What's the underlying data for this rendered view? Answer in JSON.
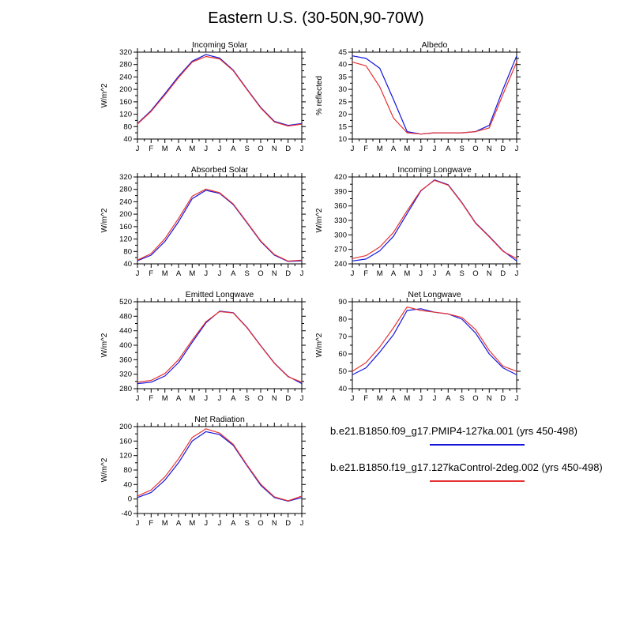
{
  "page_title": "Eastern U.S. (30-50N,90-70W)",
  "months": [
    "J",
    "F",
    "M",
    "A",
    "M",
    "J",
    "J",
    "A",
    "S",
    "O",
    "N",
    "D",
    "J"
  ],
  "series_colors": {
    "blue": "#1414dc",
    "red": "#e63232"
  },
  "legend": {
    "entries": [
      {
        "label": "b.e21.B1850.f09_g17.PMIP4-127ka.001 (yrs 450-498)",
        "color": "#1414dc"
      },
      {
        "label": "b.e21.B1850.f19_g17.127kaControl-2deg.002 (yrs 450-498)",
        "color": "#e63232"
      }
    ]
  },
  "chart_data": [
    {
      "type": "line",
      "title": "Incoming Solar",
      "ylabel": "W/m^2",
      "ylim": [
        40,
        320
      ],
      "ytick": 40,
      "categories": [
        "J",
        "F",
        "M",
        "A",
        "M",
        "J",
        "J",
        "A",
        "S",
        "O",
        "N",
        "D",
        "J"
      ],
      "series": [
        {
          "name": "PMIP4-127ka.001",
          "color": "blue",
          "values": [
            90,
            132,
            186,
            242,
            291,
            312,
            301,
            262,
            201,
            142,
            97,
            84,
            90
          ]
        },
        {
          "name": "127kaControl-2deg.002",
          "color": "red",
          "values": [
            88,
            129,
            182,
            238,
            288,
            306,
            298,
            260,
            199,
            140,
            95,
            82,
            88
          ]
        }
      ]
    },
    {
      "type": "line",
      "title": "Albedo",
      "ylabel": "% reflected",
      "ylim": [
        10,
        45
      ],
      "ytick": 5,
      "categories": [
        "J",
        "F",
        "M",
        "A",
        "M",
        "J",
        "J",
        "A",
        "S",
        "O",
        "N",
        "D",
        "J"
      ],
      "series": [
        {
          "name": "PMIP4-127ka.001",
          "color": "blue",
          "values": [
            43.5,
            42.5,
            38.5,
            26,
            13,
            12,
            12.5,
            12.5,
            12.5,
            13,
            15.5,
            30,
            43.5
          ]
        },
        {
          "name": "127kaControl-2deg.002",
          "color": "red",
          "values": [
            41,
            39.5,
            31,
            18.5,
            12.5,
            12,
            12.5,
            12.5,
            12.5,
            13,
            14.5,
            28,
            41
          ]
        }
      ]
    },
    {
      "type": "line",
      "title": "Absorbed Solar",
      "ylabel": "W/m^2",
      "ylim": [
        40,
        320
      ],
      "ytick": 40,
      "categories": [
        "J",
        "F",
        "M",
        "A",
        "M",
        "J",
        "J",
        "A",
        "S",
        "O",
        "N",
        "D",
        "J"
      ],
      "series": [
        {
          "name": "PMIP4-127ka.001",
          "color": "blue",
          "values": [
            50,
            68,
            112,
            176,
            250,
            277,
            267,
            231,
            172,
            112,
            68,
            48,
            50
          ]
        },
        {
          "name": "127kaControl-2deg.002",
          "color": "red",
          "values": [
            52,
            73,
            121,
            186,
            258,
            281,
            269,
            233,
            174,
            114,
            70,
            49,
            52
          ]
        }
      ]
    },
    {
      "type": "line",
      "title": "Incoming Longwave",
      "ylabel": "W/m^2",
      "ylim": [
        240,
        420
      ],
      "ytick": 30,
      "categories": [
        "J",
        "F",
        "M",
        "A",
        "M",
        "J",
        "J",
        "A",
        "S",
        "O",
        "N",
        "D",
        "J"
      ],
      "series": [
        {
          "name": "PMIP4-127ka.001",
          "color": "blue",
          "values": [
            246,
            250,
            267,
            297,
            344,
            391,
            414,
            404,
            367,
            325,
            297,
            267,
            246
          ]
        },
        {
          "name": "127kaControl-2deg.002",
          "color": "red",
          "values": [
            251,
            257,
            275,
            305,
            350,
            392,
            413,
            403,
            366,
            324,
            296,
            266,
            251
          ]
        }
      ]
    },
    {
      "type": "line",
      "title": "Emitted Longwave",
      "ylabel": "W/m^2",
      "ylim": [
        280,
        520
      ],
      "ytick": 40,
      "categories": [
        "J",
        "F",
        "M",
        "A",
        "M",
        "J",
        "J",
        "A",
        "S",
        "O",
        "N",
        "D",
        "J"
      ],
      "series": [
        {
          "name": "PMIP4-127ka.001",
          "color": "blue",
          "values": [
            294,
            298,
            315,
            352,
            408,
            462,
            494,
            490,
            449,
            399,
            351,
            314,
            294
          ]
        },
        {
          "name": "127kaControl-2deg.002",
          "color": "red",
          "values": [
            298,
            303,
            322,
            360,
            414,
            465,
            493,
            489,
            448,
            398,
            350,
            313,
            298
          ]
        }
      ]
    },
    {
      "type": "line",
      "title": "Net Longwave",
      "ylabel": "W/m^2",
      "ylim": [
        40,
        90
      ],
      "ytick": 10,
      "categories": [
        "J",
        "F",
        "M",
        "A",
        "M",
        "J",
        "J",
        "A",
        "S",
        "O",
        "N",
        "D",
        "J"
      ],
      "series": [
        {
          "name": "PMIP4-127ka.001",
          "color": "blue",
          "values": [
            48,
            52,
            61,
            71,
            85,
            86,
            84,
            83,
            80,
            72,
            60,
            52,
            48
          ]
        },
        {
          "name": "127kaControl-2deg.002",
          "color": "red",
          "values": [
            50,
            55,
            64,
            75,
            87,
            85,
            84,
            83,
            81,
            74,
            62,
            53,
            50
          ]
        }
      ]
    },
    {
      "type": "line",
      "title": "Net Radiation",
      "ylabel": "W/m^2",
      "ylim": [
        -40,
        200
      ],
      "ytick": 40,
      "categories": [
        "J",
        "F",
        "M",
        "A",
        "M",
        "J",
        "J",
        "A",
        "S",
        "O",
        "N",
        "D",
        "J"
      ],
      "series": [
        {
          "name": "PMIP4-127ka.001",
          "color": "blue",
          "values": [
            4,
            18,
            52,
            100,
            160,
            186,
            178,
            148,
            92,
            38,
            4,
            -6,
            4
          ]
        },
        {
          "name": "127kaControl-2deg.002",
          "color": "red",
          "values": [
            8,
            25,
            61,
            111,
            170,
            194,
            182,
            151,
            94,
            41,
            6,
            -5,
            8
          ]
        }
      ]
    }
  ]
}
